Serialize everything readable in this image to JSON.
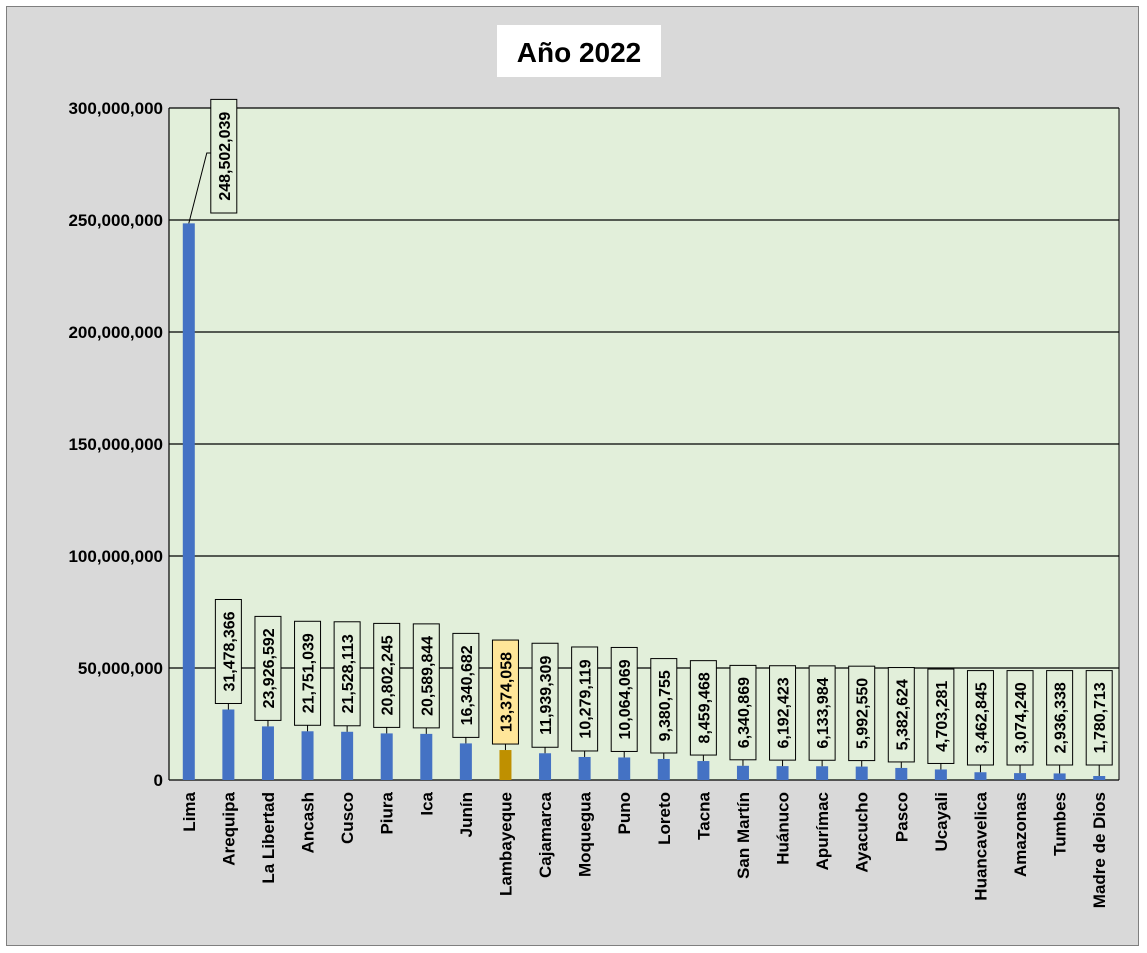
{
  "chart_data": {
    "type": "bar",
    "title": "Año 2022",
    "xlabel": "",
    "ylabel": "",
    "ylim": [
      0,
      300000000
    ],
    "yticks": [
      0,
      50000000,
      100000000,
      150000000,
      200000000,
      250000000,
      300000000
    ],
    "ytick_labels": [
      "0",
      "50,000,000",
      "100,000,000",
      "150,000,000",
      "200,000,000",
      "250,000,000",
      "300,000,000"
    ],
    "grid": true,
    "categories": [
      "Lima",
      "Arequipa",
      "La Libertad",
      "Ancash",
      "Cusco",
      "Piura",
      "Ica",
      "Junín",
      "Lambayeque",
      "Cajamarca",
      "Moquegua",
      "Puno",
      "Loreto",
      "Tacna",
      "San Martín",
      "Huánuco",
      "Apurímac",
      "Ayacucho",
      "Pasco",
      "Ucayali",
      "Huancavelica",
      "Amazonas",
      "Tumbes",
      "Madre de Dios"
    ],
    "values": [
      248502039,
      31478366,
      23926592,
      21751039,
      21528113,
      20802245,
      20589844,
      16340682,
      13374058,
      11939309,
      10279119,
      10064069,
      9380755,
      8459468,
      6340869,
      6192423,
      6133984,
      5992550,
      5382624,
      4703281,
      3462845,
      3074240,
      2936338,
      1780713
    ],
    "data_labels": [
      "248,502,039",
      "31,478,366",
      "23,926,592",
      "21,751,039",
      "21,528,113",
      "20,802,245",
      "20,589,844",
      "16,340,682",
      "13,374,058",
      "11,939,309",
      "10,279,119",
      "10,064,069",
      "9,380,755",
      "8,459,468",
      "6,340,869",
      "6,192,423",
      "6,133,984",
      "5,992,550",
      "5,382,624",
      "4,703,281",
      "3,462,845",
      "3,074,240",
      "2,936,338",
      "1,780,713"
    ],
    "highlight_category": "Lambayeque",
    "colors": {
      "bar": "#4472c4",
      "highlight_bar": "#bf9000",
      "highlight_label_bg": "#ffe699",
      "plot_bg": "#e2efda",
      "chart_bg": "#d9d9d9"
    }
  }
}
